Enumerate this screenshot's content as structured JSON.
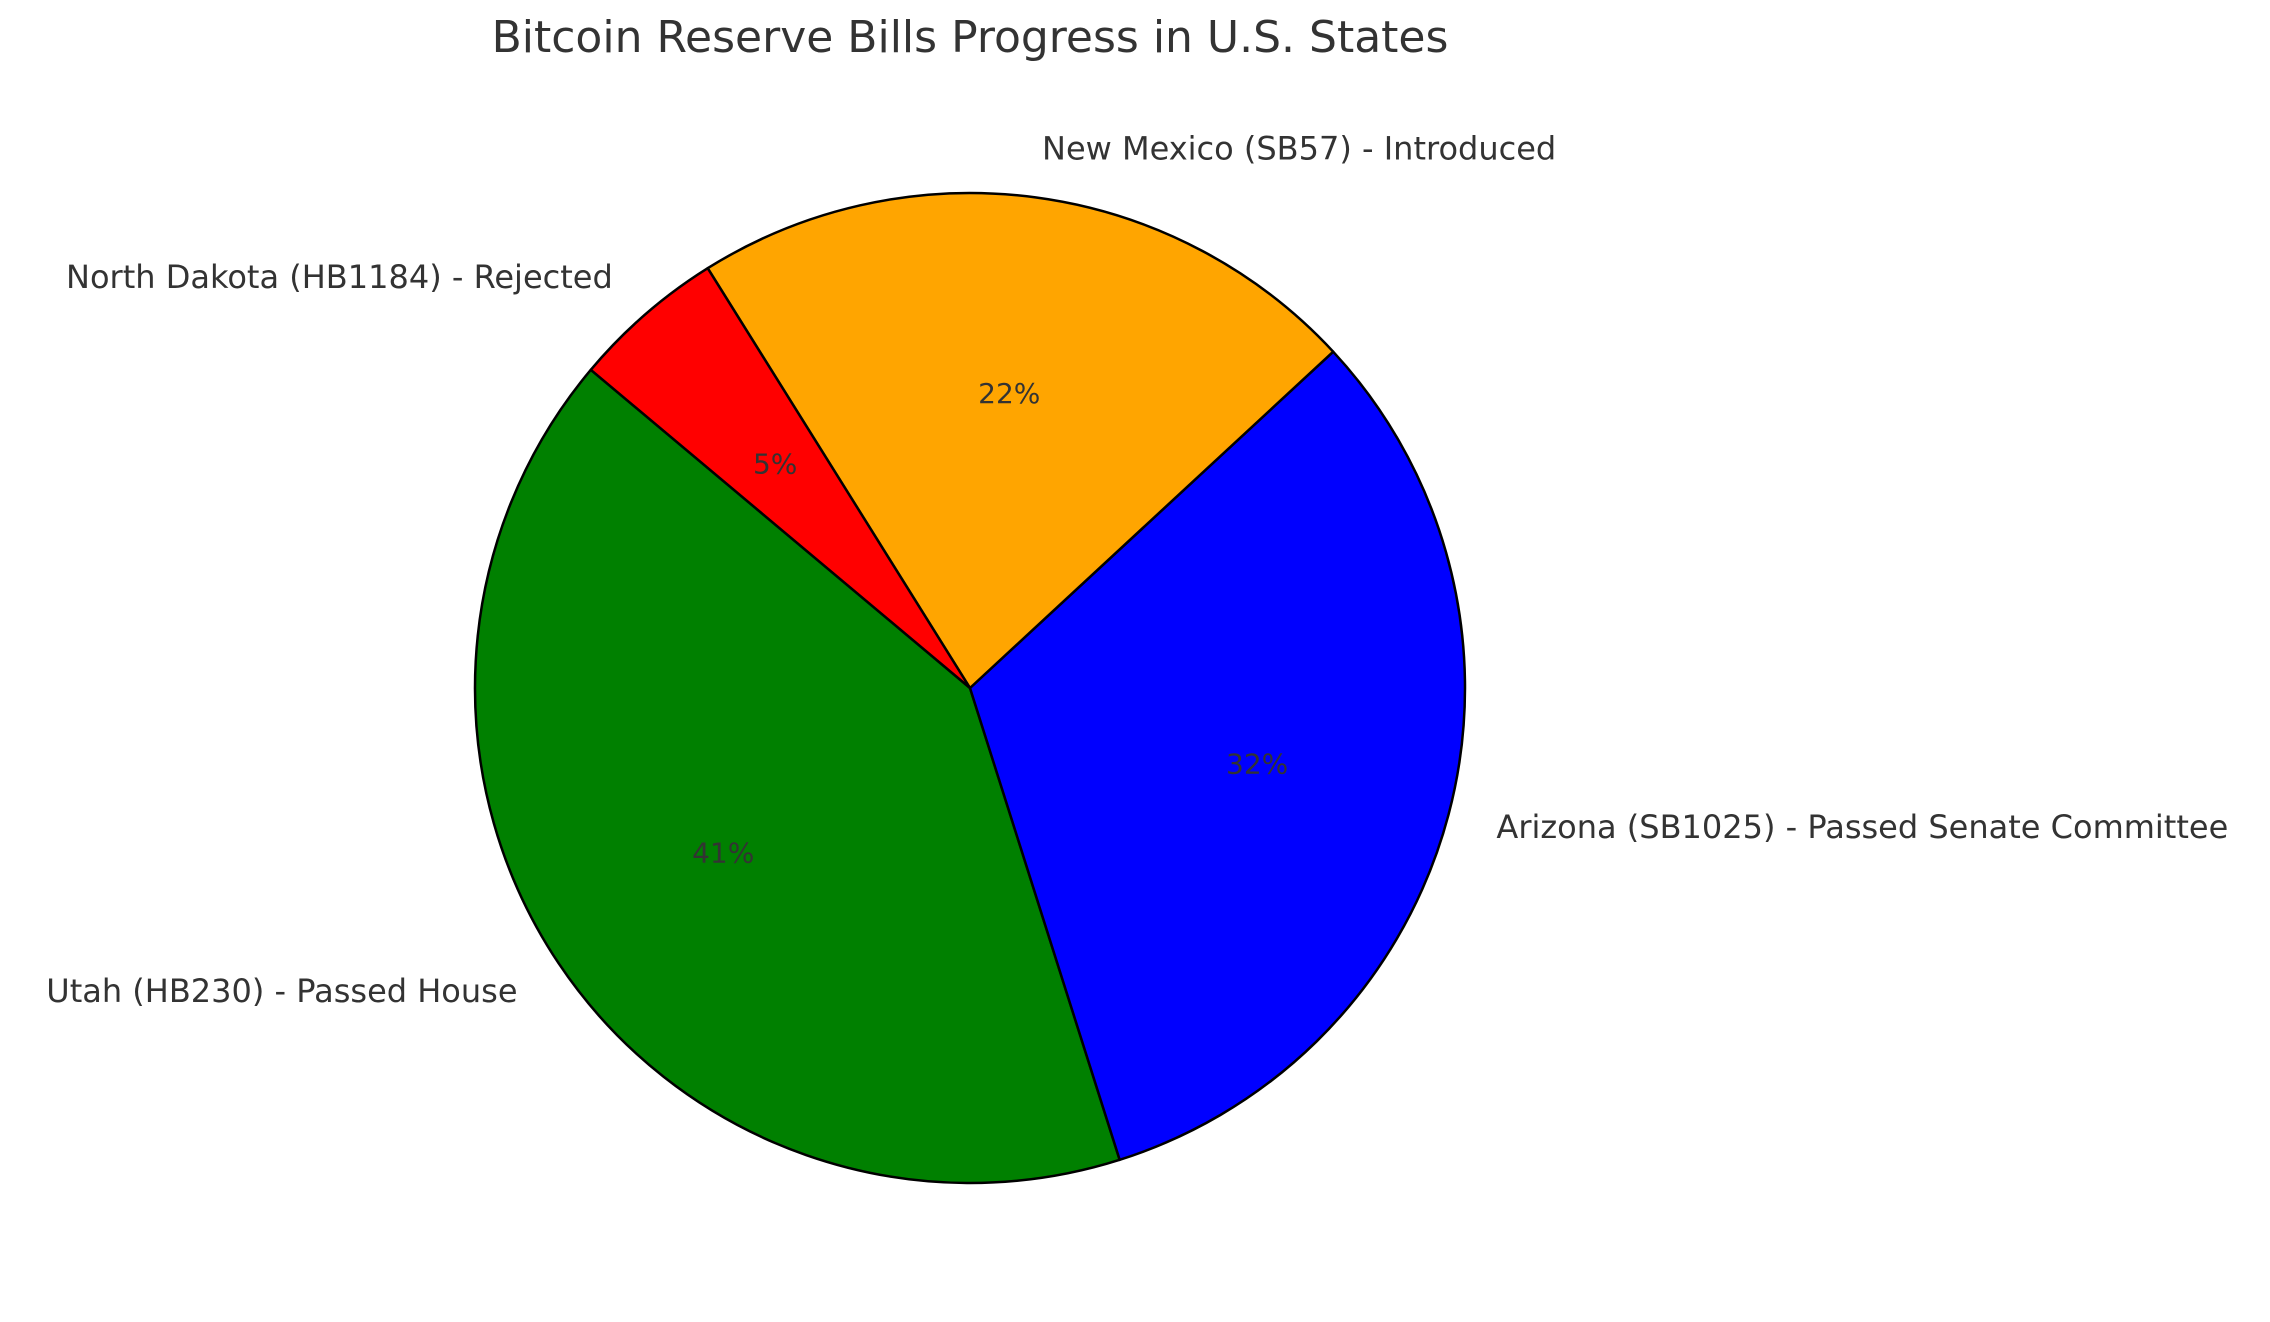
{
  "chart_data": {
    "type": "pie",
    "title": "Bitcoin Reserve Bills Progress in U.S. States",
    "start_angle_deg": 140,
    "direction": "counterclockwise",
    "slices": [
      {
        "label": "Utah (HB230) - Passed House",
        "value": 41,
        "pct_label": "41%",
        "color": "#008000"
      },
      {
        "label": "Arizona (SB1025) - Passed Senate Committee",
        "value": 32,
        "pct_label": "32%",
        "color": "#0000FF"
      },
      {
        "label": "New Mexico (SB57) - Introduced",
        "value": 22,
        "pct_label": "22%",
        "color": "#FFA500"
      },
      {
        "label": "North Dakota (HB1184) - Rejected",
        "value": 5,
        "pct_label": "5%",
        "color": "#FF0000"
      }
    ],
    "edge_color": "#000000"
  }
}
